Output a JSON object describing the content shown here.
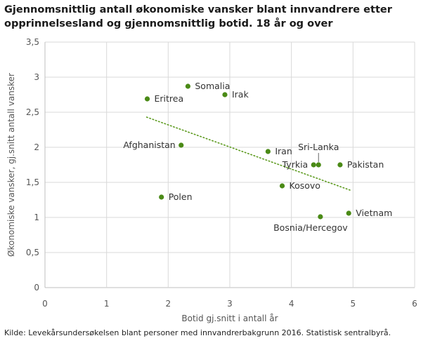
{
  "title_lines": [
    "Gjennomsnittlig antall økonomiske vansker blant innvandrere etter",
    "opprinnelsesland og gjennomsnittlig botid. 18 år og over"
  ],
  "source": "Kilde: Levekårsundersøkelsen blant personer med innvandrerbakgrunn 2016. Statistisk sentralbyrå.",
  "colors": {
    "point": "#4a8a16",
    "trend": "#5c9a1e",
    "grid": "#d9d9d9",
    "axis": "#bfbfbf"
  },
  "chart_data": {
    "type": "scatter",
    "xlabel": "Botid gj.snitt i antall år",
    "ylabel": "Økonomiske vansker, gj.snitt antall vansker",
    "xlim": [
      0,
      6
    ],
    "ylim": [
      0,
      3.5
    ],
    "xticks": [
      "0",
      "1",
      "2",
      "3",
      "4",
      "5",
      "6"
    ],
    "yticks": [
      "0",
      "0,5",
      "1",
      "1,5",
      "2",
      "2,5",
      "3",
      "3,5"
    ],
    "grid": true,
    "points": [
      {
        "label": "Somalia",
        "x": 2.32,
        "y": 2.87,
        "label_pos": "right"
      },
      {
        "label": "Irak",
        "x": 2.92,
        "y": 2.75,
        "label_pos": "right"
      },
      {
        "label": "Eritrea",
        "x": 1.66,
        "y": 2.69,
        "label_pos": "right"
      },
      {
        "label": "Afghanistan",
        "x": 2.21,
        "y": 2.03,
        "label_pos": "left"
      },
      {
        "label": "Iran",
        "x": 3.62,
        "y": 1.94,
        "label_pos": "right"
      },
      {
        "label": "Sri-Lanka",
        "x": 4.44,
        "y": 1.75,
        "label_pos": "above"
      },
      {
        "label": "Tyrkia",
        "x": 4.36,
        "y": 1.75,
        "label_pos": "left"
      },
      {
        "label": "Pakistan",
        "x": 4.79,
        "y": 1.75,
        "label_pos": "right"
      },
      {
        "label": "Kosovo",
        "x": 3.85,
        "y": 1.45,
        "label_pos": "right"
      },
      {
        "label": "Polen",
        "x": 1.89,
        "y": 1.29,
        "label_pos": "right"
      },
      {
        "label": "Vietnam",
        "x": 4.93,
        "y": 1.06,
        "label_pos": "right"
      },
      {
        "label": "Bosnia/Hercegov",
        "x": 4.47,
        "y": 1.01,
        "label_pos": "below"
      }
    ],
    "trendline": {
      "style": "dotted",
      "x": [
        1.65,
        4.95
      ],
      "y": [
        2.43,
        1.39
      ]
    }
  }
}
